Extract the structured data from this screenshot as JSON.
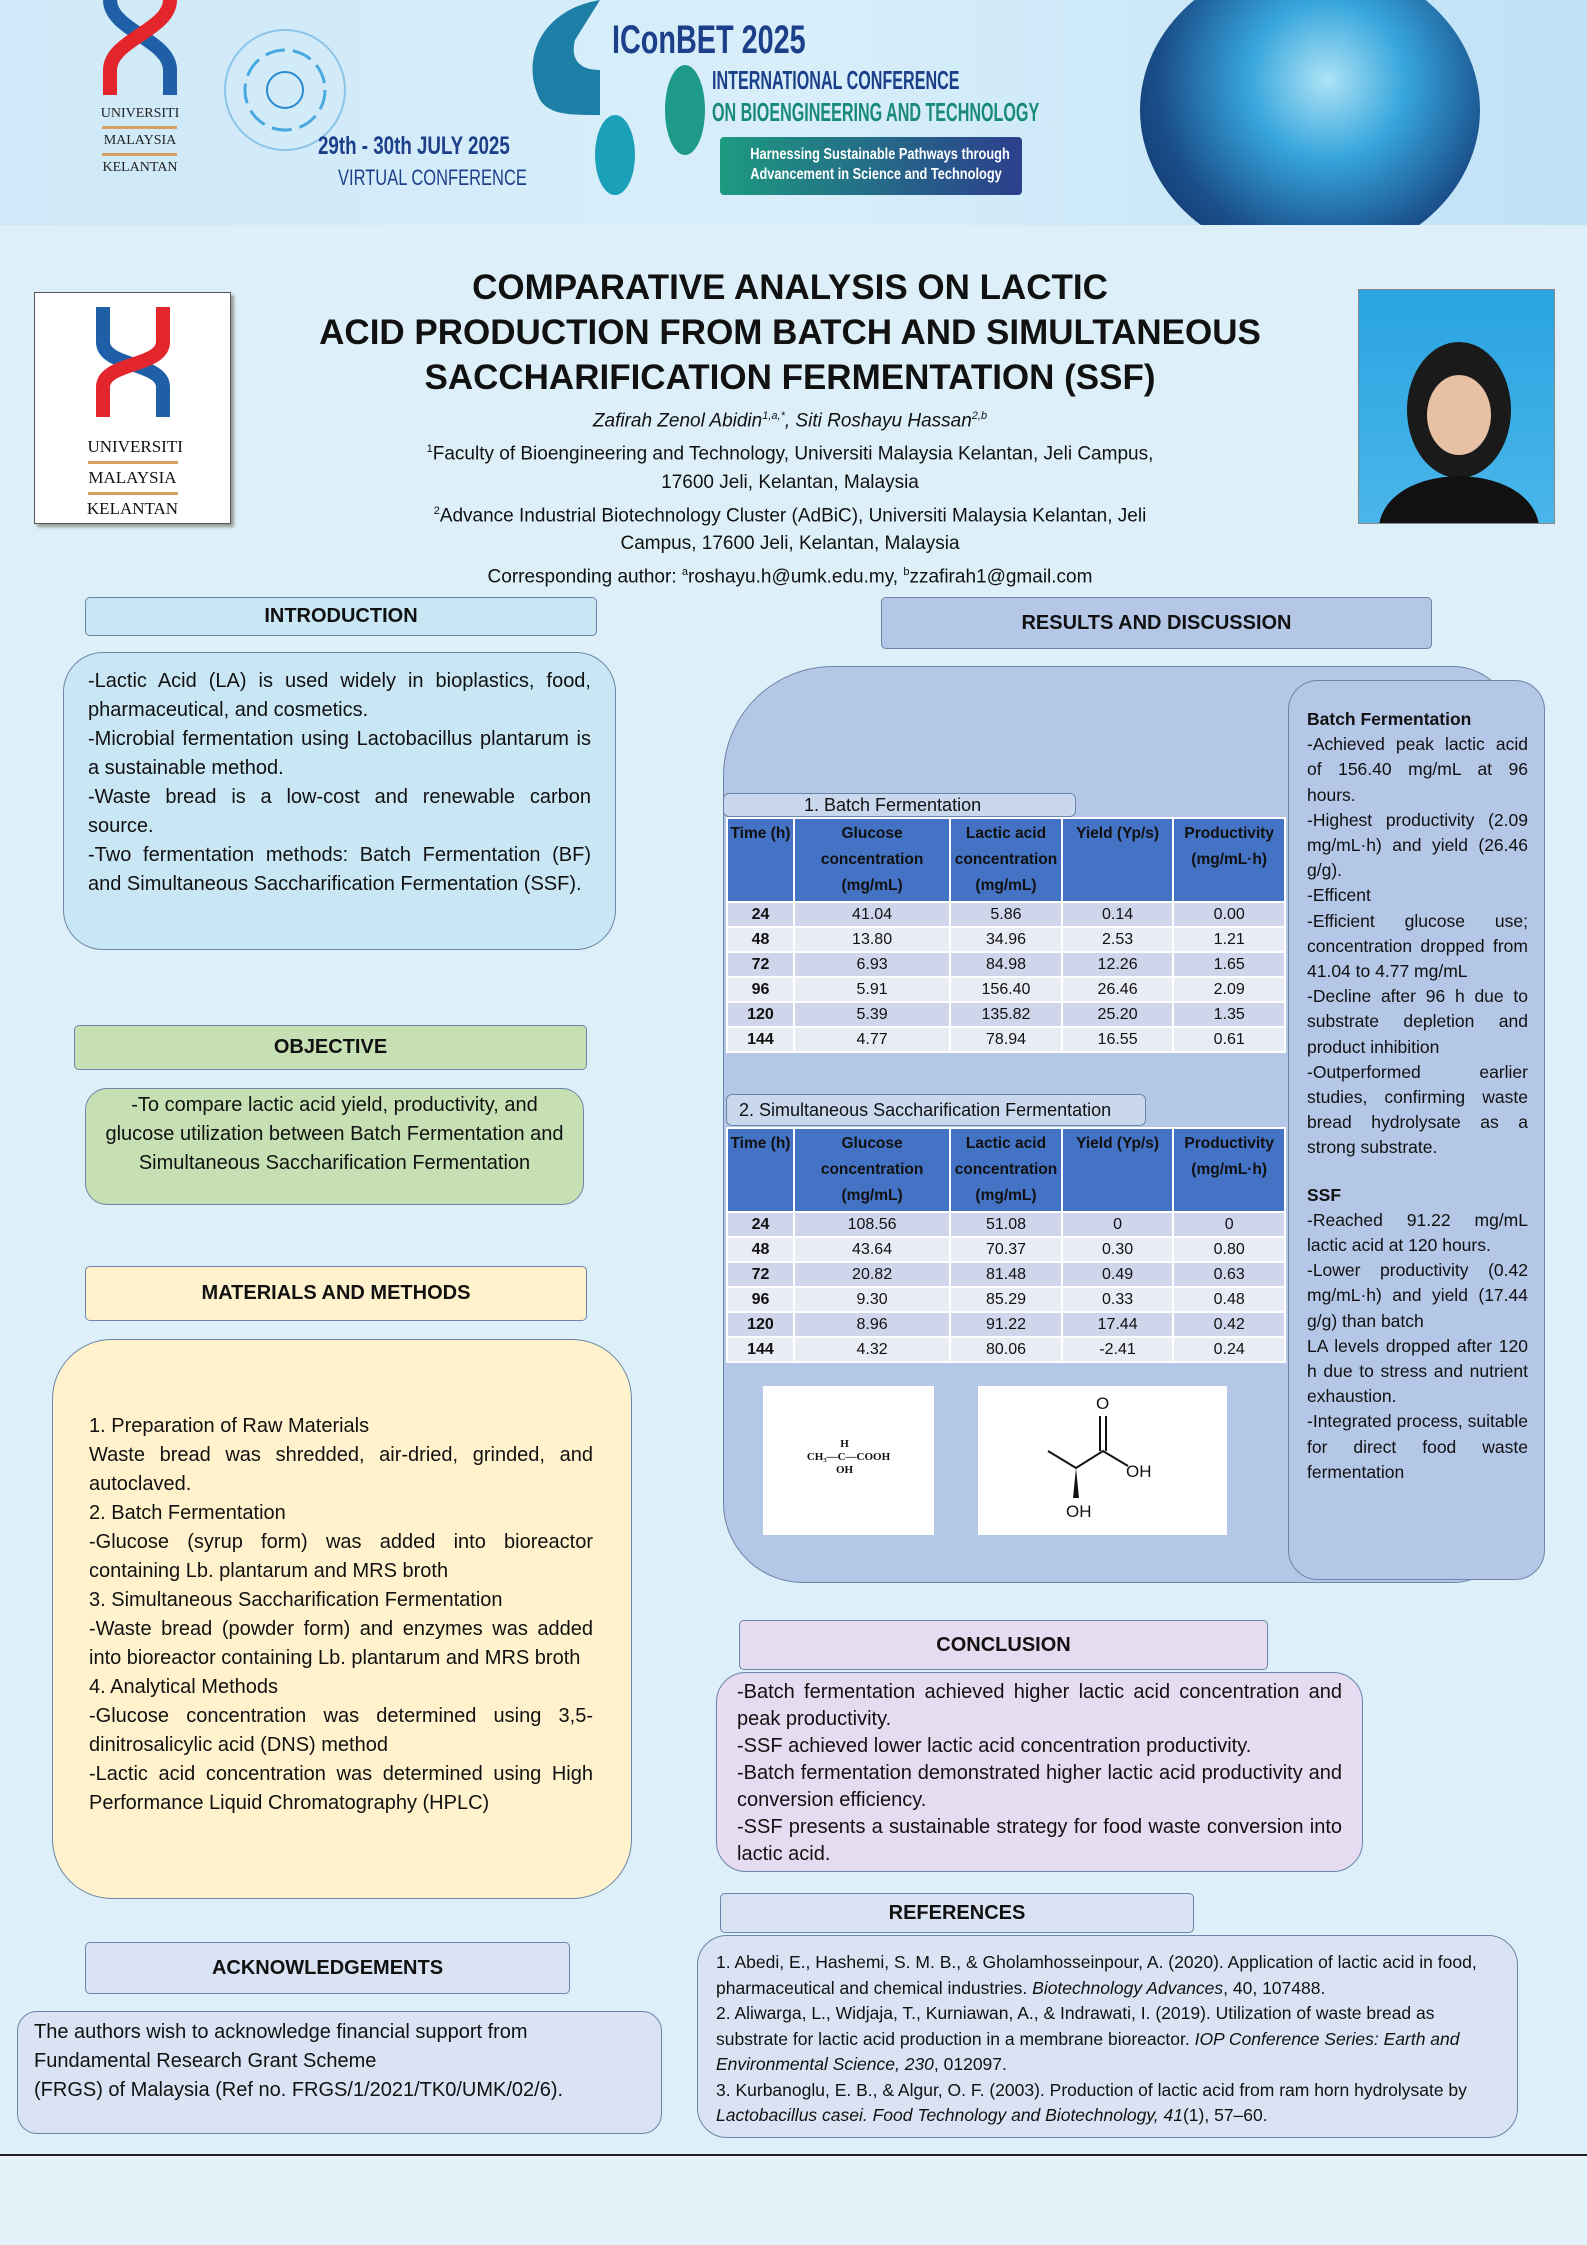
{
  "banner": {
    "univ_lines": [
      "UNIVERSITI",
      "MALAYSIA",
      "KELANTAN"
    ],
    "dates": "29th - 30th JULY 2025",
    "dates_main": "29",
    "virtual": "VIRTUAL CONFERENCE",
    "conf_name": "IConBET 2025",
    "conf_line1": "INTERNATIONAL CONFERENCE",
    "conf_line2": "ON BIOENGINEERING AND TECHNOLOGY",
    "theme_line1": "Harnessing Sustainable Pathways through",
    "theme_line2": "Advancement in Science and Technology"
  },
  "title": {
    "line1": "COMPARATIVE ANALYSIS ON LACTIC",
    "line2": "ACID PRODUCTION FROM BATCH AND SIMULTANEOUS",
    "line3": "SACCHARIFICATION FERMENTATION (SSF)",
    "author1": "Zafirah Zenol Abidin",
    "author1_sup": "1,a,*",
    "author2": ", Siti Roshayu Hassan",
    "author2_sup": "2,b",
    "aff1_sup": "1",
    "aff1": "Faculty of Bioengineering and Technology, Universiti Malaysia Kelantan, Jeli Campus,",
    "aff1b": "17600 Jeli, Kelantan, Malaysia",
    "aff2_sup": "2",
    "aff2": "Advance Industrial Biotechnology Cluster (AdBiC), Universiti Malaysia Kelantan, Jeli",
    "aff2b": "Campus, 17600 Jeli, Kelantan, Malaysia",
    "corr_label": "Corresponding author: ",
    "corr_a_sup": "a",
    "corr_a": "roshayu.h@umk.edu.my, ",
    "corr_b_sup": "b",
    "corr_b": "zzafirah1@gmail.com"
  },
  "logo": {
    "lines": [
      "UNIVERSITI",
      "MALAYSIA",
      "KELANTAN"
    ]
  },
  "introduction": {
    "heading": "INTRODUCTION",
    "items": [
      "-Lactic Acid (LA) is used widely in bioplastics, food, pharmaceutical, and cosmetics.",
      "-Microbial fermentation using Lactobacillus plantarum is a sustainable method.",
      "-Waste bread is a low-cost and renewable carbon source.",
      "-Two fermentation methods: Batch Fermentation (BF) and Simultaneous Saccharification Fermentation (SSF)."
    ]
  },
  "objective": {
    "heading": "OBJECTIVE",
    "text": "-To compare lactic acid yield, productivity, and glucose utilization between Batch Fermentation and Simultaneous Saccharification Fermentation"
  },
  "methods": {
    "heading": "MATERIALS AND METHODS",
    "items": [
      "1. Preparation of Raw Materials",
      "Waste bread was shredded, air-dried, grinded, and autoclaved.",
      "2. Batch Fermentation",
      "-Glucose (syrup form) was added into bioreactor containing Lb. plantarum and MRS broth",
      "3. Simultaneous Saccharification Fermentation",
      "-Waste bread (powder form) and enzymes was added into bioreactor containing Lb. plantarum and MRS broth",
      "4. Analytical Methods",
      "-Glucose concentration was determined using 3,5-dinitrosalicylic acid (DNS) method",
      "-Lactic acid concentration was determined using High Performance Liquid Chromatography (HPLC)"
    ]
  },
  "acknowledgements": {
    "heading": "ACKNOWLEDGEMENTS",
    "lines": [
      "The authors wish to acknowledge financial support from",
      "Fundamental Research Grant Scheme",
      "(FRGS) of Malaysia (Ref no. FRGS/1/2021/TK0/UMK/02/6)."
    ]
  },
  "results": {
    "heading": "RESULTS AND DISCUSSION",
    "columns": [
      "Time (h)",
      "Glucose concentration (mg/mL)",
      "Lactic acid concentration (mg/mL)",
      "Yield (Yp/s)",
      "Productivity (mg/mL·h)"
    ],
    "table1": {
      "label": "1. Batch Fermentation",
      "rows": [
        [
          "24",
          "41.04",
          "5.86",
          "0.14",
          "0.00"
        ],
        [
          "48",
          "13.80",
          "34.96",
          "2.53",
          "1.21"
        ],
        [
          "72",
          "6.93",
          "84.98",
          "12.26",
          "1.65"
        ],
        [
          "96",
          "5.91",
          "156.40",
          "26.46",
          "2.09"
        ],
        [
          "120",
          "5.39",
          "135.82",
          "25.20",
          "1.35"
        ],
        [
          "144",
          "4.77",
          "78.94",
          "16.55",
          "0.61"
        ]
      ]
    },
    "table2": {
      "label": "2. Simultaneous Saccharification Fermentation",
      "rows": [
        [
          "24",
          "108.56",
          "51.08",
          "0",
          "0"
        ],
        [
          "48",
          "43.64",
          "70.37",
          "0.30",
          "0.80"
        ],
        [
          "72",
          "20.82",
          "81.48",
          "0.49",
          "0.63"
        ],
        [
          "96",
          "9.30",
          "85.29",
          "0.33",
          "0.48"
        ],
        [
          "120",
          "8.96",
          "91.22",
          "17.44",
          "0.42"
        ],
        [
          "144",
          "4.32",
          "80.06",
          "-2.41",
          "0.24"
        ]
      ]
    },
    "structure1": {
      "h": "H",
      "ch3": "CH₃—C—COOH",
      "oh": "OH"
    },
    "structure2": {
      "o": "O",
      "oh1": "OH",
      "oh2": "OH"
    },
    "discussion": {
      "batch_heading": "Batch Fermentation",
      "batch_items": [
        "-Achieved peak lactic acid of 156.40 mg/mL at 96 hours.",
        "-Highest productivity (2.09 mg/mL·h) and yield (26.46 g/g).",
        "-Efficent",
        "-Efficient glucose use; concentration dropped from 41.04 to 4.77 mg/mL",
        "-Decline after 96 h due to substrate depletion and product inhibition",
        "-Outperformed earlier studies, confirming waste bread hydrolysate as a strong substrate."
      ],
      "ssf_heading": "SSF",
      "ssf_items": [
        "-Reached 91.22 mg/mL lactic acid at 120 hours.",
        "-Lower productivity (0.42 mg/mL·h) and yield (17.44 g/g) than batch",
        "LA levels dropped after 120 h due to stress and nutrient exhaustion.",
        "-Integrated process, suitable for direct food waste fermentation"
      ]
    }
  },
  "conclusion": {
    "heading": "CONCLUSION",
    "items": [
      "-Batch fermentation achieved higher lactic acid concentration and peak productivity.",
      "-SSF achieved lower lactic acid concentration productivity.",
      "-Batch fermentation demonstrated higher lactic acid productivity and conversion efficiency.",
      "-SSF presents a sustainable strategy for food waste conversion into lactic acid."
    ]
  },
  "references": {
    "heading": "REFERENCES",
    "items": [
      {
        "pre": "1. Abedi, E., Hashemi, S. M. B., & Gholamhosseinpour, A. (2020). Application of lactic acid in food, pharmaceutical and chemical industries. ",
        "journal": "Biotechnology Advances",
        "post": ", 40, 107488."
      },
      {
        "pre": "2. Aliwarga, L., Widjaja, T., Kurniawan, A., & Indrawati, I. (2019). Utilization of waste bread as substrate for lactic acid production in a membrane bioreactor. ",
        "journal": "IOP Conference Series: Earth and Environmental Science, 230",
        "post": ", 012097."
      },
      {
        "pre": "3. Kurbanoglu, E. B., & Algur, O. F. (2003). Production of lactic acid from ram horn hydrolysate by ",
        "journal": "Lactobacillus casei. Food Technology and Biotechnology, 41",
        "post": "(1), 57–60."
      }
    ]
  },
  "colors": {
    "table_header": "#4472c4",
    "brand_red": "#e3262b",
    "brand_blue": "#1f5fa8"
  }
}
